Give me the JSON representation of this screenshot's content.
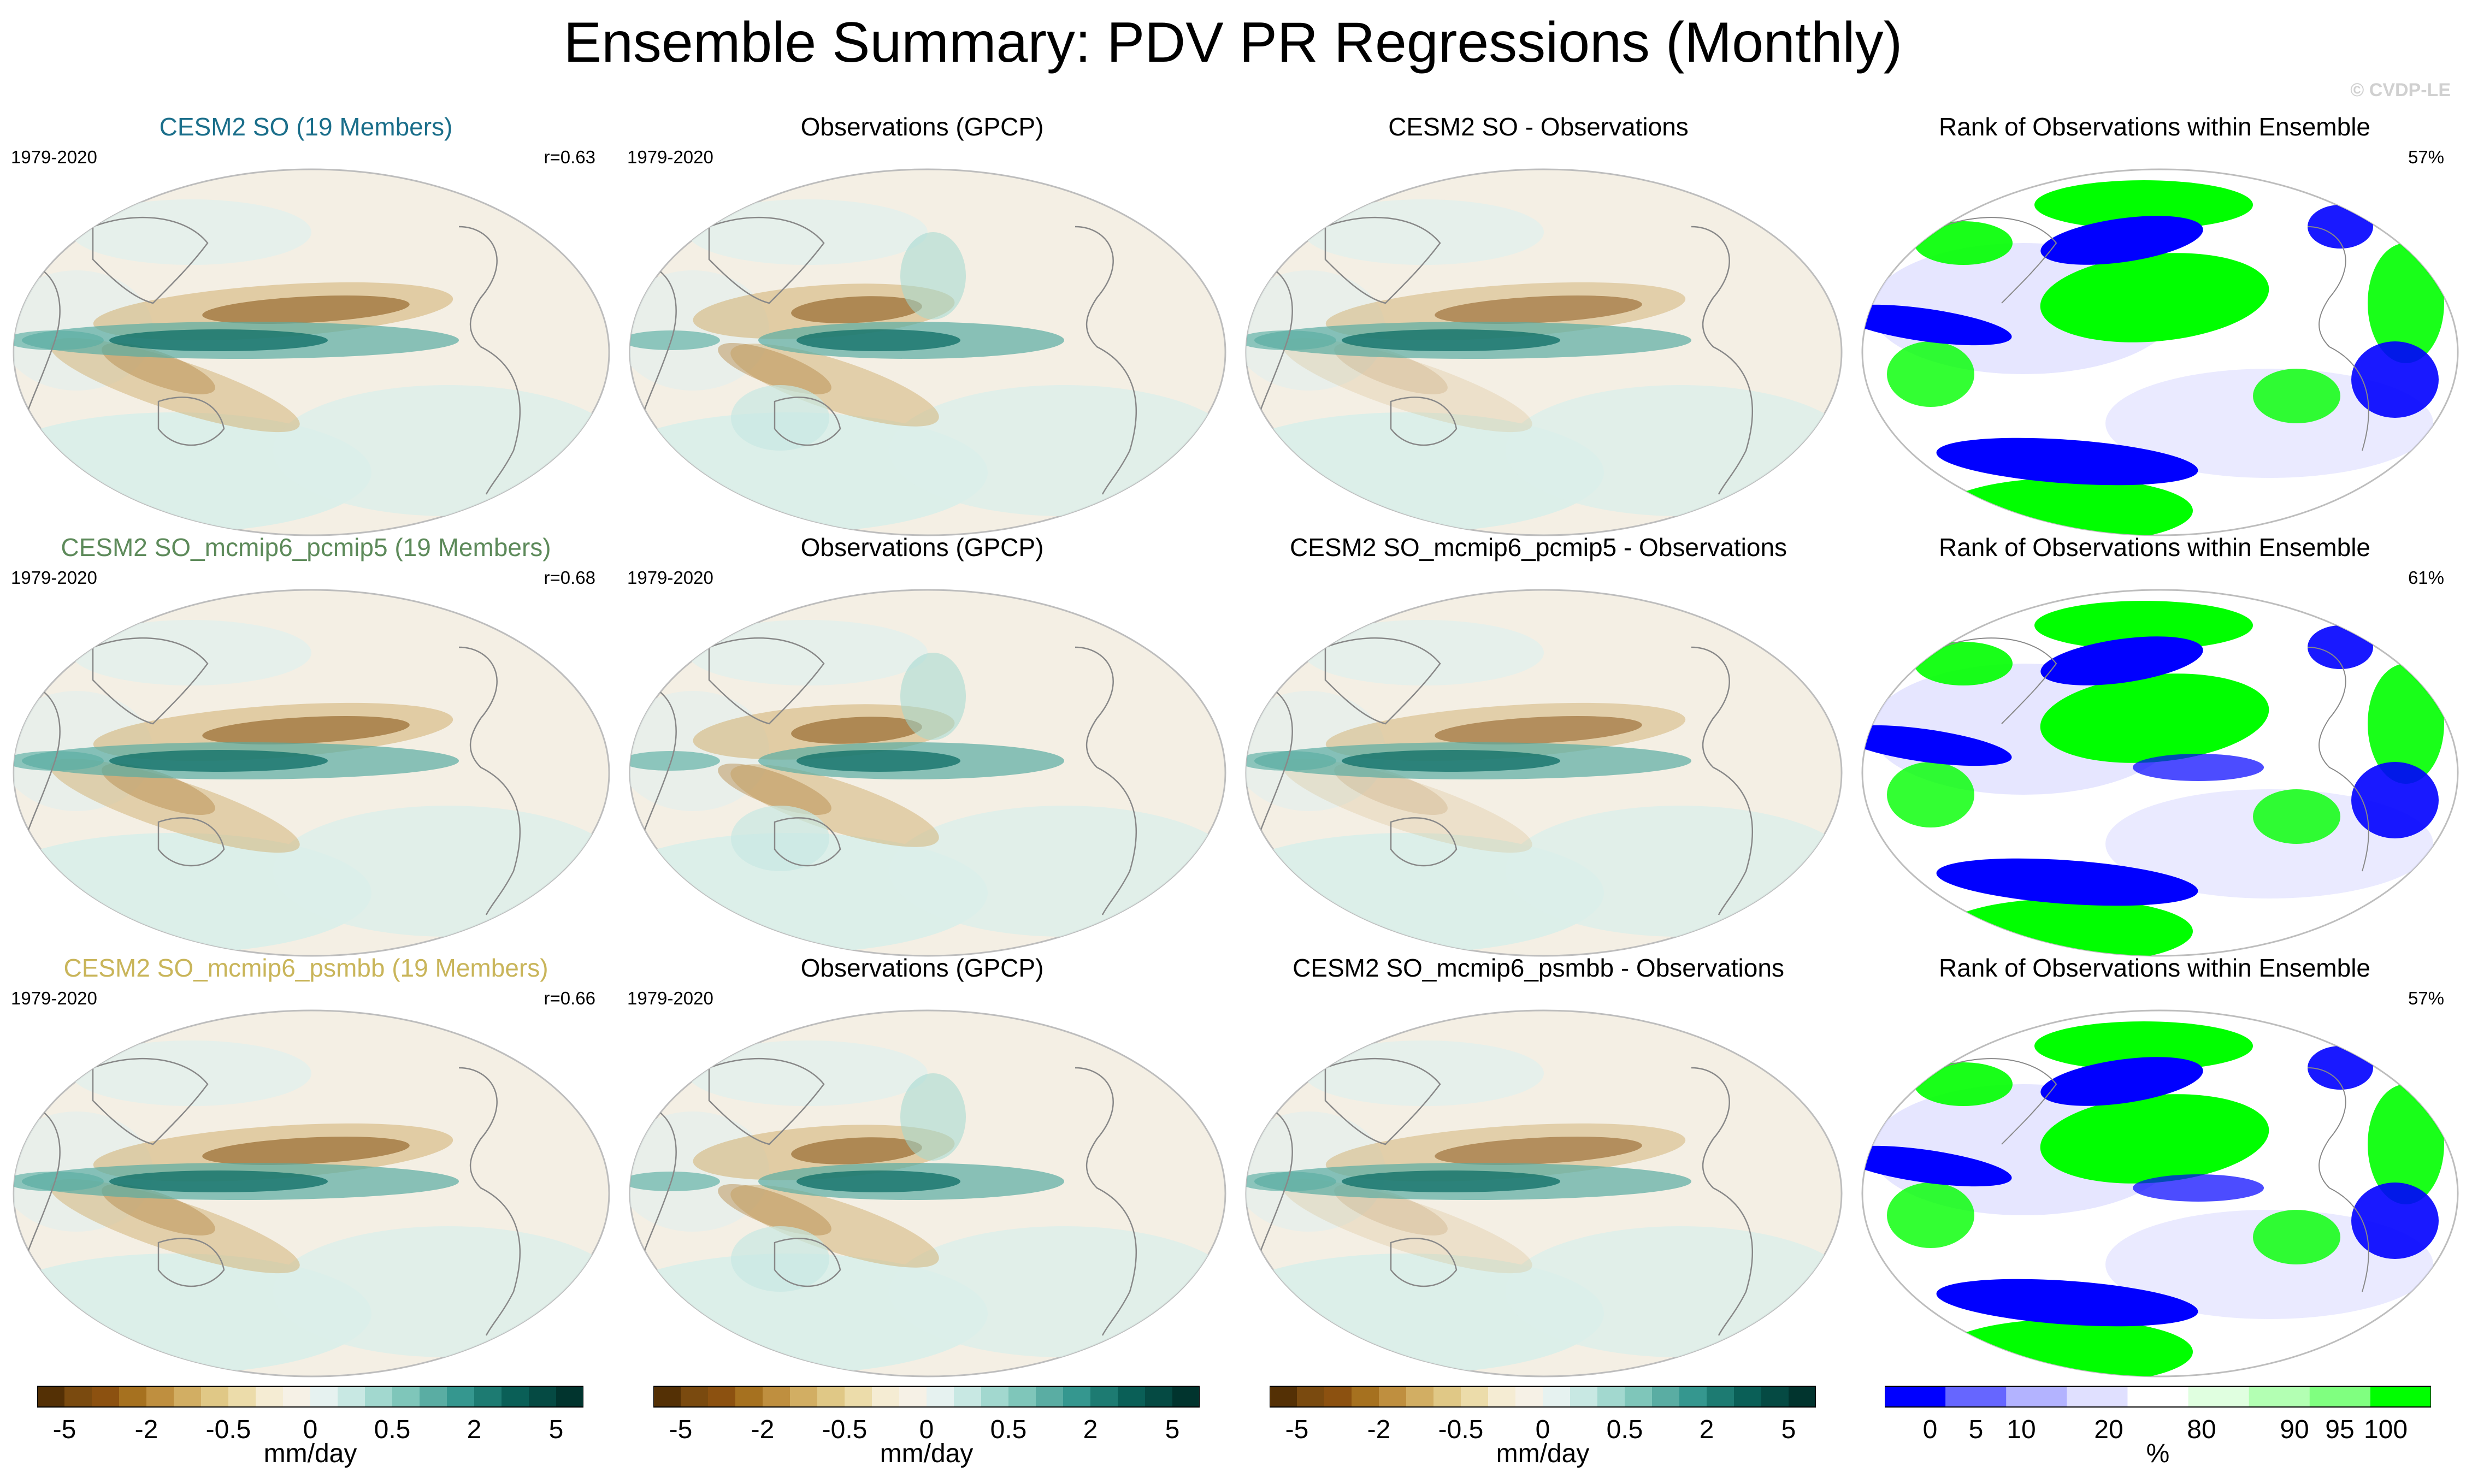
{
  "title": "Ensemble Summary: PDV PR Regressions (Monthly)",
  "credit": "© CVDP-LE",
  "rows": [
    {
      "model": {
        "title": "CESM2 SO (19 Members)",
        "title_color": "#1a6e8a",
        "period": "1979-2020",
        "corr": "r=0.63"
      },
      "obs": {
        "title": "Observations (GPCP)",
        "period": "1979-2020"
      },
      "diff": {
        "title": "CESM2 SO - Observations"
      },
      "rank": {
        "title": "Rank of Observations within Ensemble",
        "pct": "57%"
      }
    },
    {
      "model": {
        "title": "CESM2 SO_mcmip6_pcmip5 (19 Members)",
        "title_color": "#5d8a5a",
        "period": "1979-2020",
        "corr": "r=0.68"
      },
      "obs": {
        "title": "Observations (GPCP)",
        "period": "1979-2020"
      },
      "diff": {
        "title": "CESM2 SO_mcmip6_pcmip5 - Observations"
      },
      "rank": {
        "title": "Rank of Observations within Ensemble",
        "pct": "61%"
      }
    },
    {
      "model": {
        "title": "CESM2 SO_mcmip6_psmbb (19 Members)",
        "title_color": "#c9b55a",
        "period": "1979-2020",
        "corr": "r=0.66"
      },
      "obs": {
        "title": "Observations (GPCP)",
        "period": "1979-2020"
      },
      "diff": {
        "title": "CESM2 SO_mcmip6_psmbb - Observations"
      },
      "rank": {
        "title": "Rank of Observations within Ensemble",
        "pct": "57%"
      }
    }
  ],
  "chart_data": {
    "type": "heatmap",
    "projection": "Robinson (Pacific-centered)",
    "field": "precipitation regression on PDV",
    "colorbars": [
      {
        "label": "mm/day",
        "ticks": [
          "-5",
          "-2",
          "-0.5",
          "0",
          "0.5",
          "2",
          "5"
        ],
        "levels": [
          -5,
          -4,
          -3,
          -2,
          -1.5,
          -1,
          -0.5,
          -0.25,
          -0.1,
          0,
          0.1,
          0.25,
          0.5,
          1,
          1.5,
          2,
          3,
          4,
          5
        ],
        "colors": [
          "#543005",
          "#7a4a0f",
          "#8c5110",
          "#a6711f",
          "#bf8f3f",
          "#d2ae63",
          "#e0c886",
          "#ecdcaa",
          "#f5ecd3",
          "#f6f1e6",
          "#e6f2f0",
          "#c8e8e3",
          "#a2d8cf",
          "#7fc6ba",
          "#5aada3",
          "#35978f",
          "#1d7b72",
          "#0a5f57",
          "#054a43",
          "#01342e"
        ]
      },
      {
        "label": "mm/day",
        "ticks": [
          "-5",
          "-2",
          "-0.5",
          "0",
          "0.5",
          "2",
          "5"
        ]
      },
      {
        "label": "mm/day",
        "ticks": [
          "-5",
          "-2",
          "-0.5",
          "0",
          "0.5",
          "2",
          "5"
        ]
      },
      {
        "label": "%",
        "ticks": [
          "0",
          "5",
          "10",
          "20",
          "80",
          "90",
          "95",
          "100"
        ],
        "colors": [
          "#0000ff",
          "#6666ff",
          "#b3b3ff",
          "#e0e0ff",
          "#ffffff",
          "#e0ffe0",
          "#b3ffb3",
          "#80ff80",
          "#00ff00"
        ]
      }
    ]
  }
}
